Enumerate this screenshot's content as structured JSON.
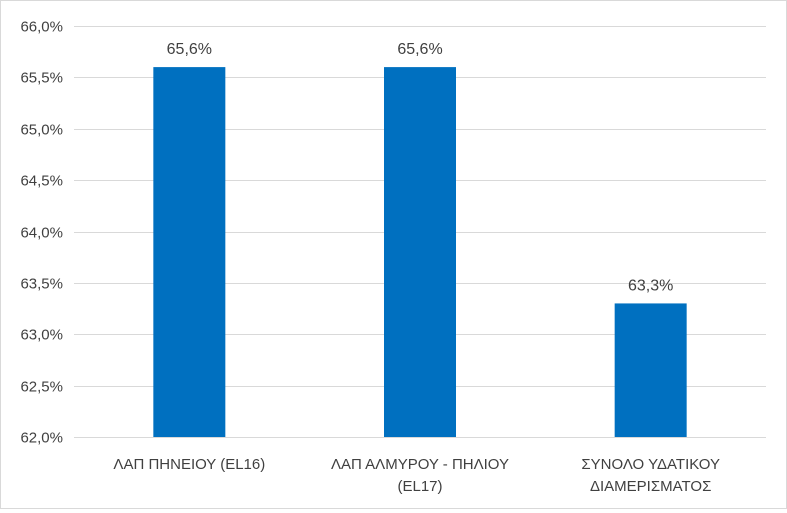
{
  "chart_data": {
    "type": "bar",
    "categories": [
      [
        "ΛΑΠ ΠΗΝΕΙΟΥ (EL16)"
      ],
      [
        "ΛΑΠ ΑΛΜΥΡΟΥ - ΠΗΛΙΟΥ",
        "(EL17)"
      ],
      [
        "ΣΥΝΟΛΟ ΥΔΑΤΙΚΟΥ",
        "ΔΙΑΜΕΡΙΣΜΑΤΟΣ"
      ]
    ],
    "values": [
      65.6,
      65.6,
      63.3
    ],
    "data_labels": [
      "65,6%",
      "65,6%",
      "63,3%"
    ],
    "ylim": [
      62.0,
      66.0
    ],
    "y_ticks": [
      62.0,
      62.5,
      63.0,
      63.5,
      64.0,
      64.5,
      65.0,
      65.5,
      66.0
    ],
    "y_tick_labels": [
      "62,0%",
      "62,5%",
      "63,0%",
      "63,5%",
      "64,0%",
      "64,5%",
      "65,0%",
      "65,5%",
      "66,0%"
    ],
    "grid": true,
    "legend": "none",
    "bar_color": "#0070c0",
    "grid_color": "#d9d9d9",
    "text_color": "#404040"
  }
}
